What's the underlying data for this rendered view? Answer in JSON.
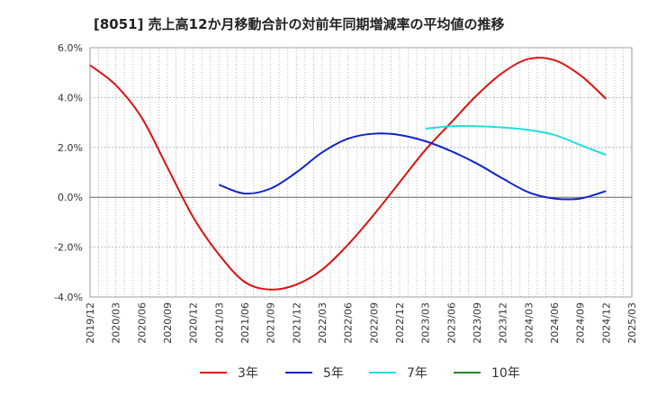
{
  "chart_data": {
    "type": "line",
    "title": "[8051]  売上高12か月移動合計の対前年同期増減率の平均値の推移",
    "xlabel": "",
    "ylabel": "",
    "ylim": [
      -4.0,
      6.0
    ],
    "yticks": [
      {
        "value": 6.0,
        "label": "6.0%"
      },
      {
        "value": 4.0,
        "label": "4.0%"
      },
      {
        "value": 2.0,
        "label": "2.0%"
      },
      {
        "value": 0.0,
        "label": "0.0%"
      },
      {
        "value": -2.0,
        "label": "-2.0%"
      },
      {
        "value": -4.0,
        "label": "-4.0%"
      }
    ],
    "xticks": [
      "2019/12",
      "2020/03",
      "2020/06",
      "2020/09",
      "2020/12",
      "2021/03",
      "2021/06",
      "2021/09",
      "2021/12",
      "2022/03",
      "2022/06",
      "2022/09",
      "2022/12",
      "2023/03",
      "2023/06",
      "2023/09",
      "2023/12",
      "2024/03",
      "2024/06",
      "2024/09",
      "2024/12",
      "2025/03"
    ],
    "grid": true,
    "legend_position": "bottom",
    "series": [
      {
        "name": "3年",
        "color": "#dd1111",
        "x": [
          "2019/12",
          "2020/03",
          "2020/06",
          "2020/09",
          "2020/12",
          "2021/03",
          "2021/06",
          "2021/09",
          "2021/12",
          "2022/03",
          "2022/06",
          "2022/09",
          "2022/12",
          "2023/03",
          "2023/06",
          "2023/09",
          "2023/12",
          "2024/03",
          "2024/06",
          "2024/09",
          "2024/12"
        ],
        "values": [
          5.3,
          4.5,
          3.2,
          1.2,
          -0.8,
          -2.3,
          -3.4,
          -3.7,
          -3.5,
          -2.9,
          -1.9,
          -0.7,
          0.6,
          1.9,
          3.0,
          4.1,
          5.0,
          5.55,
          5.5,
          4.9,
          3.95
        ]
      },
      {
        "name": "5年",
        "color": "#1122cc",
        "x": [
          "2021/03",
          "2021/06",
          "2021/09",
          "2021/12",
          "2022/03",
          "2022/06",
          "2022/09",
          "2022/12",
          "2023/03",
          "2023/06",
          "2023/09",
          "2023/12",
          "2024/03",
          "2024/06",
          "2024/09",
          "2024/12"
        ],
        "values": [
          0.5,
          0.15,
          0.35,
          1.0,
          1.8,
          2.35,
          2.55,
          2.5,
          2.25,
          1.85,
          1.35,
          0.75,
          0.2,
          -0.05,
          -0.05,
          0.25
        ]
      },
      {
        "name": "7年",
        "color": "#22dddd",
        "x": [
          "2023/03",
          "2023/06",
          "2023/09",
          "2023/12",
          "2024/03",
          "2024/06",
          "2024/09",
          "2024/12"
        ],
        "values": [
          2.75,
          2.85,
          2.85,
          2.8,
          2.7,
          2.5,
          2.1,
          1.7
        ]
      },
      {
        "name": "10年",
        "color": "#228822",
        "x": [],
        "values": []
      }
    ]
  }
}
